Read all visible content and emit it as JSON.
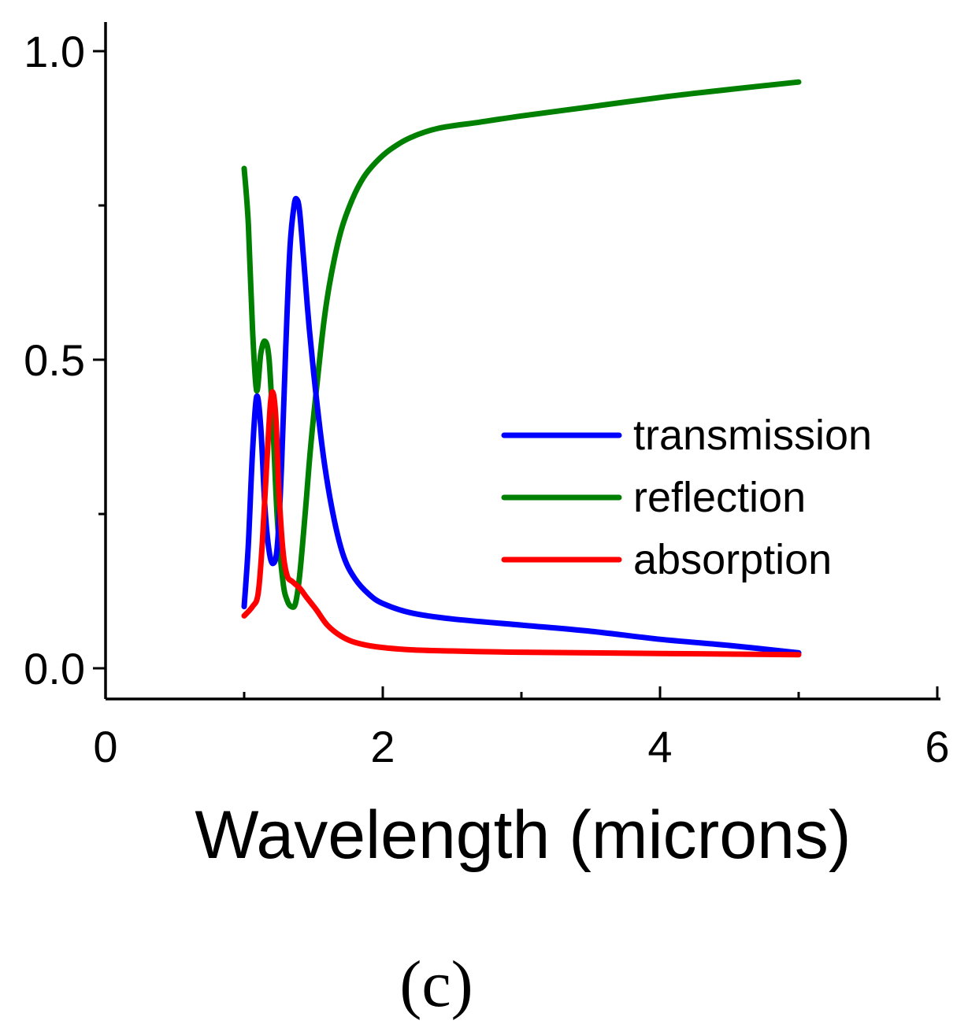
{
  "chart_data": {
    "type": "line",
    "title": "",
    "xlabel": "Wavelength (microns)",
    "ylabel": "",
    "panel_label": "(c)",
    "xlim": [
      0,
      6
    ],
    "ylim": [
      -0.05,
      1.05
    ],
    "x_ticks": [
      0,
      2,
      4,
      6
    ],
    "x_tick_labels": [
      "0",
      "2",
      "4",
      "6"
    ],
    "y_ticks": [
      0.0,
      0.5,
      1.0
    ],
    "y_tick_labels": [
      "0.0",
      "0.5",
      "1.0"
    ],
    "grid": false,
    "legend_position": "center-right",
    "series": [
      {
        "name": "transmission",
        "color": "#0000ff",
        "points": [
          [
            1.0,
            0.1
          ],
          [
            1.03,
            0.2
          ],
          [
            1.06,
            0.35
          ],
          [
            1.09,
            0.44
          ],
          [
            1.12,
            0.39
          ],
          [
            1.15,
            0.26
          ],
          [
            1.18,
            0.19
          ],
          [
            1.21,
            0.17
          ],
          [
            1.24,
            0.2
          ],
          [
            1.27,
            0.33
          ],
          [
            1.3,
            0.52
          ],
          [
            1.33,
            0.68
          ],
          [
            1.36,
            0.75
          ],
          [
            1.38,
            0.76
          ],
          [
            1.4,
            0.74
          ],
          [
            1.43,
            0.66
          ],
          [
            1.47,
            0.55
          ],
          [
            1.52,
            0.44
          ],
          [
            1.58,
            0.33
          ],
          [
            1.65,
            0.24
          ],
          [
            1.72,
            0.18
          ],
          [
            1.8,
            0.145
          ],
          [
            1.9,
            0.12
          ],
          [
            2.0,
            0.105
          ],
          [
            2.2,
            0.09
          ],
          [
            2.5,
            0.08
          ],
          [
            3.0,
            0.07
          ],
          [
            3.5,
            0.06
          ],
          [
            4.0,
            0.047
          ],
          [
            4.5,
            0.037
          ],
          [
            5.0,
            0.025
          ]
        ]
      },
      {
        "name": "reflection",
        "color": "#008000",
        "points": [
          [
            1.0,
            0.81
          ],
          [
            1.03,
            0.72
          ],
          [
            1.06,
            0.55
          ],
          [
            1.09,
            0.45
          ],
          [
            1.12,
            0.51
          ],
          [
            1.15,
            0.53
          ],
          [
            1.18,
            0.5
          ],
          [
            1.21,
            0.38
          ],
          [
            1.24,
            0.24
          ],
          [
            1.28,
            0.14
          ],
          [
            1.31,
            0.11
          ],
          [
            1.34,
            0.1
          ],
          [
            1.37,
            0.105
          ],
          [
            1.4,
            0.15
          ],
          [
            1.44,
            0.25
          ],
          [
            1.48,
            0.36
          ],
          [
            1.53,
            0.47
          ],
          [
            1.58,
            0.57
          ],
          [
            1.63,
            0.64
          ],
          [
            1.7,
            0.71
          ],
          [
            1.78,
            0.76
          ],
          [
            1.86,
            0.795
          ],
          [
            1.95,
            0.82
          ],
          [
            2.05,
            0.84
          ],
          [
            2.2,
            0.86
          ],
          [
            2.4,
            0.875
          ],
          [
            2.7,
            0.885
          ],
          [
            3.0,
            0.895
          ],
          [
            3.5,
            0.91
          ],
          [
            4.0,
            0.925
          ],
          [
            4.5,
            0.938
          ],
          [
            5.0,
            0.95
          ]
        ]
      },
      {
        "name": "absorption",
        "color": "#ff0000",
        "points": [
          [
            1.0,
            0.085
          ],
          [
            1.06,
            0.1
          ],
          [
            1.1,
            0.12
          ],
          [
            1.13,
            0.2
          ],
          [
            1.16,
            0.32
          ],
          [
            1.19,
            0.43
          ],
          [
            1.21,
            0.445
          ],
          [
            1.23,
            0.4
          ],
          [
            1.25,
            0.29
          ],
          [
            1.28,
            0.19
          ],
          [
            1.31,
            0.15
          ],
          [
            1.35,
            0.14
          ],
          [
            1.4,
            0.13
          ],
          [
            1.45,
            0.115
          ],
          [
            1.52,
            0.095
          ],
          [
            1.6,
            0.07
          ],
          [
            1.7,
            0.052
          ],
          [
            1.8,
            0.042
          ],
          [
            1.95,
            0.035
          ],
          [
            2.2,
            0.03
          ],
          [
            2.5,
            0.028
          ],
          [
            3.0,
            0.026
          ],
          [
            4.0,
            0.024
          ],
          [
            5.0,
            0.022
          ]
        ]
      }
    ]
  }
}
